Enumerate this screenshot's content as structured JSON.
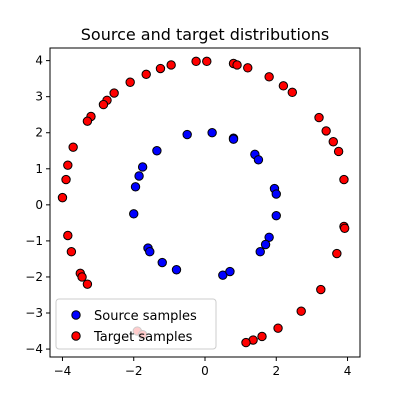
{
  "chart_data": {
    "type": "scatter",
    "title": "Source and target distributions",
    "xlabel": "",
    "ylabel": "",
    "xlim": [
      -4.35,
      4.35
    ],
    "ylim": [
      -4.22,
      4.35
    ],
    "x_ticks": [
      -4,
      -2,
      0,
      2,
      4
    ],
    "y_ticks": [
      -4,
      -3,
      -2,
      -1,
      0,
      1,
      2,
      3,
      4
    ],
    "x_tick_labels": [
      "−4",
      "−2",
      "0",
      "2",
      "4"
    ],
    "y_tick_labels": [
      "−4",
      "−3",
      "−2",
      "−1",
      "0",
      "1",
      "2",
      "3",
      "4"
    ],
    "grid": false,
    "legend": "lower-left",
    "series": [
      {
        "name": "Source samples",
        "color": "#0000ff",
        "points": [
          [
            -0.5,
            1.95
          ],
          [
            0.2,
            2.0
          ],
          [
            0.8,
            1.85
          ],
          [
            0.8,
            1.82
          ],
          [
            -1.35,
            1.5
          ],
          [
            -1.75,
            1.05
          ],
          [
            -1.85,
            0.8
          ],
          [
            -1.95,
            0.5
          ],
          [
            -2.0,
            -0.25
          ],
          [
            1.4,
            1.4
          ],
          [
            1.5,
            1.25
          ],
          [
            1.95,
            0.45
          ],
          [
            2.0,
            0.3
          ],
          [
            2.0,
            -0.3
          ],
          [
            1.8,
            -0.9
          ],
          [
            1.7,
            -1.1
          ],
          [
            1.55,
            -1.3
          ],
          [
            -1.6,
            -1.2
          ],
          [
            -1.55,
            -1.3
          ],
          [
            -1.2,
            -1.6
          ],
          [
            -0.8,
            -1.8
          ],
          [
            0.5,
            -1.95
          ],
          [
            0.7,
            -1.85
          ]
        ]
      },
      {
        "name": "Target samples",
        "color": "#ff0000",
        "points": [
          [
            -0.25,
            3.98
          ],
          [
            0.05,
            3.98
          ],
          [
            0.8,
            3.92
          ],
          [
            0.9,
            3.88
          ],
          [
            1.2,
            3.8
          ],
          [
            -0.95,
            3.88
          ],
          [
            -1.25,
            3.78
          ],
          [
            -1.65,
            3.62
          ],
          [
            -2.1,
            3.4
          ],
          [
            -2.55,
            3.1
          ],
          [
            -2.75,
            2.9
          ],
          [
            -2.85,
            2.78
          ],
          [
            -3.2,
            2.45
          ],
          [
            -3.3,
            2.32
          ],
          [
            -3.7,
            1.6
          ],
          [
            -3.85,
            1.1
          ],
          [
            -3.9,
            0.7
          ],
          [
            -4.0,
            0.2
          ],
          [
            1.8,
            3.55
          ],
          [
            2.2,
            3.3
          ],
          [
            2.45,
            3.12
          ],
          [
            3.2,
            2.42
          ],
          [
            3.4,
            2.05
          ],
          [
            3.6,
            1.75
          ],
          [
            3.75,
            1.48
          ],
          [
            3.9,
            0.7
          ],
          [
            3.9,
            -0.6
          ],
          [
            3.92,
            -0.65
          ],
          [
            3.7,
            -1.35
          ],
          [
            3.25,
            -2.35
          ],
          [
            2.7,
            -2.95
          ],
          [
            2.05,
            -3.42
          ],
          [
            1.6,
            -3.65
          ],
          [
            1.35,
            -3.75
          ],
          [
            1.15,
            -3.82
          ],
          [
            -1.9,
            -3.5
          ],
          [
            -1.75,
            -3.6
          ],
          [
            -3.85,
            -0.85
          ],
          [
            -3.75,
            -1.3
          ],
          [
            -3.5,
            -1.9
          ],
          [
            -3.45,
            -2.0
          ],
          [
            -3.3,
            -2.2
          ]
        ]
      }
    ]
  }
}
